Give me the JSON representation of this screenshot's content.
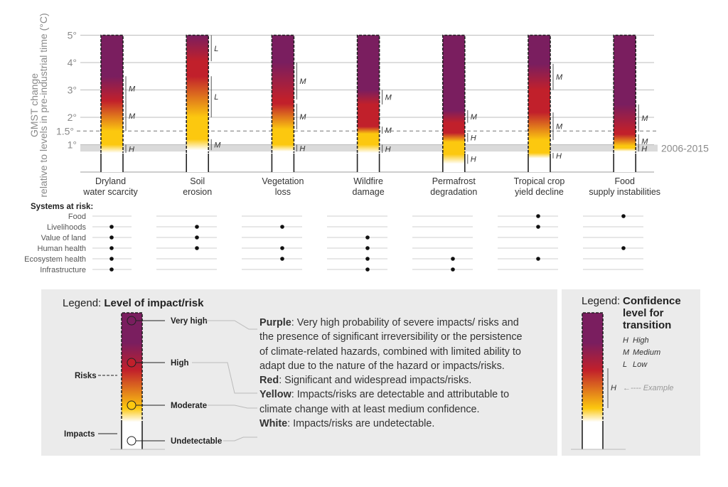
{
  "colors": {
    "undetectable": "#ffffff",
    "moderate": "#fcc80f",
    "high": "#c1202b",
    "very_high": "#7a1e5f",
    "grid": "#bdbdbd",
    "band": "#dadada",
    "panel": "#ebebeb"
  },
  "chart_data": {
    "type": "burning-embers",
    "ylabel": [
      "GMST change",
      "relative to levels in pre-industrial time (°C)"
    ],
    "ylim": [
      0,
      5
    ],
    "yticks": [
      {
        "value": 5,
        "label": "5°"
      },
      {
        "value": 4,
        "label": "4°"
      },
      {
        "value": 3,
        "label": "3°"
      },
      {
        "value": 2,
        "label": "2°"
      },
      {
        "value": 1.5,
        "label": "1.5°"
      },
      {
        "value": 1,
        "label": "1°"
      }
    ],
    "reference_band": {
      "label": "2006-2015",
      "range": [
        0.75,
        1.0
      ]
    },
    "embers": [
      {
        "name": [
          "Dryland",
          "water scarcity"
        ],
        "transitions": [
          {
            "from": "undetectable",
            "to": "moderate",
            "range": [
              0.7,
              1.0
            ],
            "confidence": "H"
          },
          {
            "from": "moderate",
            "to": "high",
            "range": [
              1.5,
              2.6
            ],
            "confidence": "M"
          },
          {
            "from": "high",
            "to": "very_high",
            "range": [
              2.6,
              3.5
            ],
            "confidence": "M"
          }
        ]
      },
      {
        "name": [
          "Soil",
          "erosion"
        ],
        "transitions": [
          {
            "from": "undetectable",
            "to": "moderate",
            "range": [
              0.8,
              1.2
            ],
            "confidence": "M"
          },
          {
            "from": "moderate",
            "to": "high",
            "range": [
              2.0,
              3.5
            ],
            "confidence": "L"
          },
          {
            "from": "high",
            "to": "very_high",
            "range": [
              4.05,
              5.0
            ],
            "confidence": "L"
          }
        ]
      },
      {
        "name": [
          "Vegetation",
          "loss"
        ],
        "transitions": [
          {
            "from": "undetectable",
            "to": "moderate",
            "range": [
              0.75,
              1.0
            ],
            "confidence": "H"
          },
          {
            "from": "moderate",
            "to": "high",
            "range": [
              1.56,
              2.5
            ],
            "confidence": "M"
          },
          {
            "from": "high",
            "to": "very_high",
            "range": [
              2.65,
              4.0
            ],
            "confidence": "M"
          }
        ]
      },
      {
        "name": [
          "Wildfire",
          "damage"
        ],
        "transitions": [
          {
            "from": "undetectable",
            "to": "moderate",
            "range": [
              0.7,
              1.0
            ],
            "confidence": "H"
          },
          {
            "from": "moderate",
            "to": "high",
            "range": [
              1.4,
              1.66
            ],
            "confidence": "M"
          },
          {
            "from": "high",
            "to": "very_high",
            "range": [
              2.47,
              3.0
            ],
            "confidence": "M"
          }
        ]
      },
      {
        "name": [
          "Permafrost",
          "degradation"
        ],
        "transitions": [
          {
            "from": "undetectable",
            "to": "moderate",
            "range": [
              0.3,
              0.65
            ],
            "confidence": "H"
          },
          {
            "from": "moderate",
            "to": "high",
            "range": [
              1.1,
              1.43
            ],
            "confidence": "H"
          },
          {
            "from": "high",
            "to": "very_high",
            "range": [
              1.8,
              2.26
            ],
            "confidence": "M"
          }
        ]
      },
      {
        "name": [
          "Tropical crop",
          "yield decline"
        ],
        "transitions": [
          {
            "from": "undetectable",
            "to": "moderate",
            "range": [
              0.5,
              0.7
            ],
            "confidence": "H"
          },
          {
            "from": "moderate",
            "to": "high",
            "range": [
              1.17,
              2.18
            ],
            "confidence": "M"
          },
          {
            "from": "high",
            "to": "very_high",
            "range": [
              3.0,
              3.95
            ],
            "confidence": "M"
          }
        ]
      },
      {
        "name": [
          "Food",
          "supply instabilities"
        ],
        "transitions": [
          {
            "from": "undetectable",
            "to": "moderate",
            "range": [
              0.75,
              0.96
            ],
            "confidence": "H"
          },
          {
            "from": "moderate",
            "to": "high",
            "range": [
              0.88,
              1.38
            ],
            "confidence": "M"
          },
          {
            "from": "high",
            "to": "very_high",
            "range": [
              1.48,
              2.47
            ],
            "confidence": "M"
          }
        ]
      }
    ]
  },
  "systems_at_risk": {
    "title": "Systems at risk:",
    "rows": [
      "Food",
      "Livelihoods",
      "Value of land",
      "Human health",
      "Ecosystem health",
      "Infrastructure"
    ],
    "marks": [
      [
        false,
        true,
        true,
        true,
        true,
        true
      ],
      [
        false,
        true,
        true,
        true,
        false,
        false
      ],
      [
        false,
        true,
        false,
        true,
        true,
        false
      ],
      [
        false,
        false,
        true,
        true,
        true,
        true
      ],
      [
        false,
        false,
        false,
        false,
        true,
        true
      ],
      [
        true,
        true,
        false,
        false,
        true,
        false
      ],
      [
        true,
        false,
        false,
        true,
        false,
        false
      ]
    ]
  },
  "legend_impact": {
    "title_prefix": "Legend: ",
    "title_bold": "Level of impact/risk",
    "levels": [
      "Very high",
      "High",
      "Moderate",
      "Undetectable"
    ],
    "risks_label": "Risks",
    "impacts_label": "Impacts",
    "descriptions": [
      {
        "term": "Purple",
        "text": ": Very high probability of severe impacts/ risks and the presence of significant irreversibility or the persistence of climate-related hazards, combined with limited ability to adapt due to the nature of the hazard or impacts/risks."
      },
      {
        "term": "Red",
        "text": ": Significant and widespread impacts/risks."
      },
      {
        "term": "Yellow",
        "text": ": Impacts/risks are detectable and attributable to climate change with at least medium confidence."
      },
      {
        "term": "White",
        "text": ": Impacts/risks are undetectable."
      }
    ]
  },
  "legend_confidence": {
    "title_prefix": "Legend:",
    "title_bold": [
      "Confidence",
      "level for",
      "transition"
    ],
    "items": [
      {
        "code": "H",
        "label": "High"
      },
      {
        "code": "M",
        "label": "Medium"
      },
      {
        "code": "L",
        "label": "Low"
      }
    ],
    "example_code": "H",
    "example_label": "←---- Example"
  }
}
